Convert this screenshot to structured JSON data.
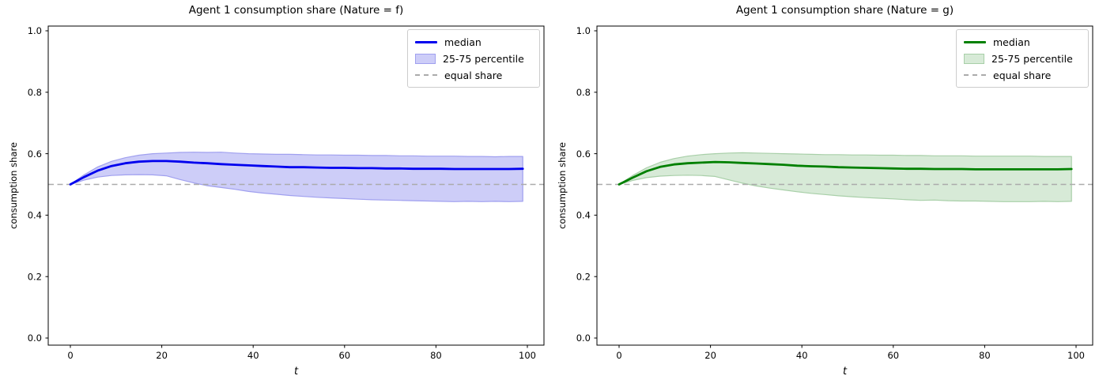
{
  "background_color": "#ffffff",
  "chart_data": [
    {
      "type": "line",
      "title": "Agent 1 consumption share (Nature = f)",
      "xlabel": "t",
      "ylabel": "consumption share",
      "xlim": [
        -5,
        104
      ],
      "ylim": [
        0.0,
        1.0
      ],
      "grid": false,
      "legend": [
        "median",
        "25-75 percentile",
        "equal share"
      ],
      "legend_position": "upper right",
      "equal_share": 0.5,
      "xticks": [
        0,
        20,
        40,
        60,
        80,
        100
      ],
      "xticklabels": [
        "0",
        "20",
        "40",
        "60",
        "80",
        "100"
      ],
      "yticks": [
        0.0,
        0.2,
        0.4,
        0.6,
        0.8,
        1.0
      ],
      "yticklabels": [
        "0.0",
        "0.2",
        "0.4",
        "0.6",
        "0.8",
        "1.0"
      ],
      "colors": {
        "median": "#0000ee",
        "band_fill": "#cdcdf8",
        "band_edge": "#a0a0ef",
        "equal_share": "#ababab"
      },
      "x": [
        0,
        3,
        6,
        9,
        12,
        15,
        18,
        21,
        24,
        27,
        30,
        33,
        36,
        39,
        42,
        45,
        48,
        51,
        54,
        57,
        60,
        63,
        66,
        69,
        72,
        75,
        78,
        81,
        84,
        87,
        90,
        93,
        96,
        99
      ],
      "median": [
        0.5,
        0.524,
        0.545,
        0.56,
        0.569,
        0.574,
        0.576,
        0.576,
        0.574,
        0.571,
        0.569,
        0.566,
        0.564,
        0.562,
        0.56,
        0.558,
        0.556,
        0.556,
        0.555,
        0.554,
        0.554,
        0.553,
        0.553,
        0.552,
        0.552,
        0.551,
        0.551,
        0.551,
        0.55,
        0.55,
        0.55,
        0.55,
        0.55,
        0.551
      ],
      "p75": [
        0.5,
        0.531,
        0.557,
        0.575,
        0.587,
        0.595,
        0.6,
        0.602,
        0.604,
        0.605,
        0.604,
        0.605,
        0.602,
        0.6,
        0.599,
        0.598,
        0.598,
        0.597,
        0.596,
        0.596,
        0.595,
        0.595,
        0.594,
        0.594,
        0.593,
        0.593,
        0.592,
        0.592,
        0.592,
        0.591,
        0.591,
        0.59,
        0.591,
        0.591
      ],
      "p25": [
        0.5,
        0.514,
        0.524,
        0.529,
        0.531,
        0.532,
        0.531,
        0.528,
        0.516,
        0.505,
        0.496,
        0.49,
        0.484,
        0.477,
        0.472,
        0.468,
        0.464,
        0.461,
        0.458,
        0.456,
        0.454,
        0.452,
        0.45,
        0.449,
        0.448,
        0.447,
        0.446,
        0.445,
        0.444,
        0.445,
        0.444,
        0.445,
        0.444,
        0.445
      ]
    },
    {
      "type": "line",
      "title": "Agent 1 consumption share (Nature = g)",
      "xlabel": "t",
      "ylabel": "consumption share",
      "xlim": [
        -5,
        104
      ],
      "ylim": [
        0.0,
        1.0
      ],
      "grid": false,
      "legend": [
        "median",
        "25-75 percentile",
        "equal share"
      ],
      "legend_position": "upper right",
      "equal_share": 0.5,
      "xticks": [
        0,
        20,
        40,
        60,
        80,
        100
      ],
      "xticklabels": [
        "0",
        "20",
        "40",
        "60",
        "80",
        "100"
      ],
      "yticks": [
        0.0,
        0.2,
        0.4,
        0.6,
        0.8,
        1.0
      ],
      "yticklabels": [
        "0.0",
        "0.2",
        "0.4",
        "0.6",
        "0.8",
        "1.0"
      ],
      "colors": {
        "median": "#008000",
        "band_fill": "#d7ead7",
        "band_edge": "#a8cfa8",
        "equal_share": "#ababab"
      },
      "x": [
        0,
        3,
        6,
        9,
        12,
        15,
        18,
        21,
        24,
        27,
        30,
        33,
        36,
        39,
        42,
        45,
        48,
        51,
        54,
        57,
        60,
        63,
        66,
        69,
        72,
        75,
        78,
        81,
        84,
        87,
        90,
        93,
        96,
        99
      ],
      "median": [
        0.5,
        0.522,
        0.543,
        0.557,
        0.565,
        0.569,
        0.571,
        0.573,
        0.572,
        0.57,
        0.568,
        0.566,
        0.564,
        0.561,
        0.559,
        0.558,
        0.556,
        0.555,
        0.554,
        0.553,
        0.552,
        0.551,
        0.551,
        0.55,
        0.55,
        0.55,
        0.549,
        0.549,
        0.549,
        0.549,
        0.549,
        0.549,
        0.549,
        0.55
      ],
      "p75": [
        0.5,
        0.529,
        0.554,
        0.572,
        0.584,
        0.592,
        0.597,
        0.6,
        0.602,
        0.603,
        0.602,
        0.601,
        0.6,
        0.599,
        0.598,
        0.597,
        0.597,
        0.596,
        0.596,
        0.595,
        0.595,
        0.594,
        0.594,
        0.593,
        0.593,
        0.593,
        0.592,
        0.592,
        0.592,
        0.592,
        0.592,
        0.591,
        0.591,
        0.591
      ],
      "p25": [
        0.5,
        0.513,
        0.522,
        0.527,
        0.529,
        0.53,
        0.529,
        0.526,
        0.515,
        0.504,
        0.495,
        0.488,
        0.482,
        0.476,
        0.471,
        0.467,
        0.463,
        0.46,
        0.457,
        0.455,
        0.453,
        0.45,
        0.448,
        0.449,
        0.447,
        0.446,
        0.446,
        0.445,
        0.444,
        0.444,
        0.444,
        0.445,
        0.444,
        0.445
      ]
    }
  ]
}
